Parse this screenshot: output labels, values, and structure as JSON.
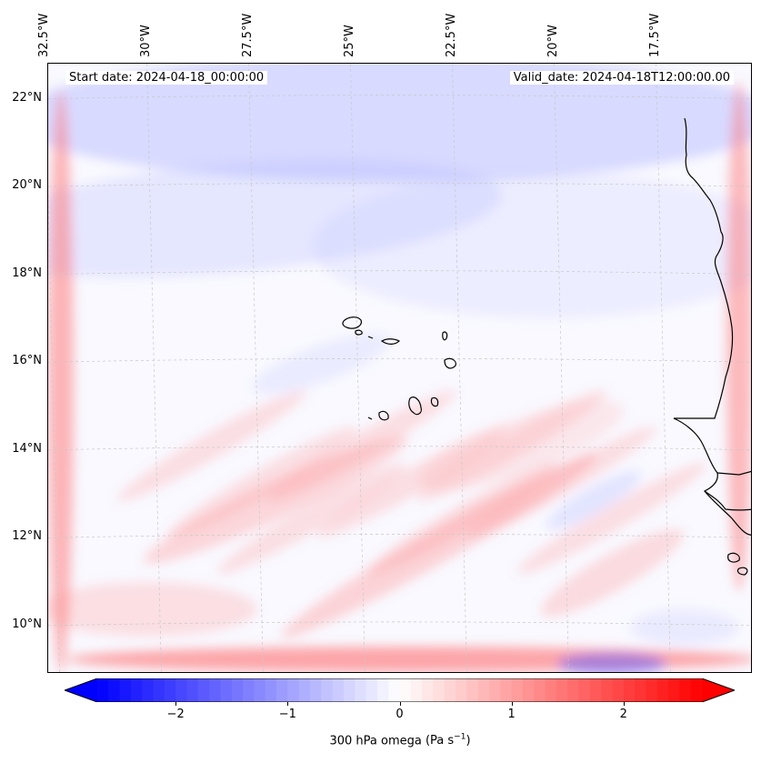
{
  "map": {
    "title_left": "Start date: 2024-04-18_00:00:00",
    "title_right": "Valid_date: 2024-04-18T12:00:00.00",
    "variable": "300 hPa omega",
    "units_base": "(Pa s",
    "units_exp": "−1",
    "units_close": ")",
    "extent": {
      "lon_min": -32.6,
      "lon_max": -15.3,
      "lat_min": 8.9,
      "lat_max": 22.8
    },
    "lon_labels": [
      {
        "text": "32.5°W",
        "value": -32.5
      },
      {
        "text": "30°W",
        "value": -30
      },
      {
        "text": "27.5°W",
        "value": -27.5
      },
      {
        "text": "25°W",
        "value": -25
      },
      {
        "text": "22.5°W",
        "value": -22.5
      },
      {
        "text": "20°W",
        "value": -20
      },
      {
        "text": "17.5°W",
        "value": -17.5
      }
    ],
    "lat_labels": [
      {
        "text": "22°N",
        "value": 22
      },
      {
        "text": "20°N",
        "value": 20
      },
      {
        "text": "18°N",
        "value": 18
      },
      {
        "text": "16°N",
        "value": 16
      },
      {
        "text": "14°N",
        "value": 14
      },
      {
        "text": "12°N",
        "value": 12
      },
      {
        "text": "10°N",
        "value": 10
      }
    ],
    "features": [
      "west-african-coastline",
      "cape-verde-islands",
      "graticule-dashed"
    ]
  },
  "colorbar": {
    "colormap": "bwr",
    "min": -2.7,
    "max": 2.7,
    "extend": "both",
    "ticks": [
      {
        "label": "−2",
        "value": -2
      },
      {
        "label": "−1",
        "value": -1
      },
      {
        "label": "0",
        "value": 0
      },
      {
        "label": "1",
        "value": 1
      },
      {
        "label": "2",
        "value": 2
      }
    ],
    "neg_color": "#0000ff",
    "mid_color": "#ffffff",
    "pos_color": "#ff0000"
  }
}
